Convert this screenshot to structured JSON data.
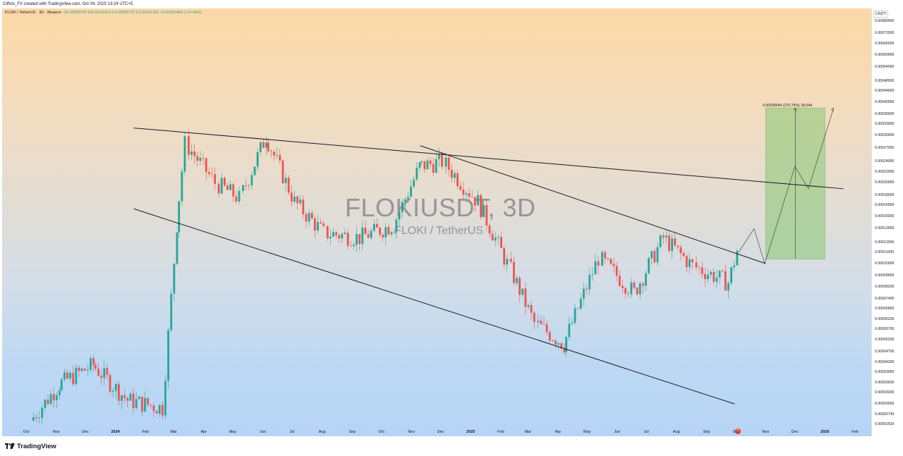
{
  "header": {
    "caption": "Clifton_FX created with TradingView.com, Oct 04, 2025 13:24 UTC+5"
  },
  "legend": {
    "title": "FLOKI / TetherUS · 3D · Binance",
    "values": "O0.00009760 H0.00011614 L0.00009729 C0.00011169 +0.00001409 (+14.44%)"
  },
  "watermark": {
    "symbol": "FLOKIUSDT, 3D",
    "name": "FLOKI / TetherUS"
  },
  "price_axis": {
    "currency": "USDT",
    "ticks": [
      "0.00080000",
      "0.00072000",
      "0.00066000",
      "0.00060000",
      "0.00054000",
      "0.00048000",
      "0.00044000",
      "0.00040000",
      "0.00036000",
      "0.00033000",
      "0.00030000",
      "0.00027000",
      "0.00024000",
      "0.00022000",
      "0.00020000",
      "0.00018000",
      "0.00016500",
      "0.00015000",
      "0.00013500",
      "0.00012000",
      "0.00011000",
      "0.00010000",
      "0.00009000",
      "0.00008200",
      "0.00007400",
      "0.00006800",
      "0.00006200",
      "0.00005700",
      "0.00005200",
      "0.00004700",
      "0.00004300",
      "0.00003950",
      "0.00003600",
      "0.00003300",
      "0.00003000",
      "0.00002740",
      "0.00002520"
    ]
  },
  "time_axis": {
    "labels": [
      {
        "text": "Oct",
        "bold": false
      },
      {
        "text": "Nov",
        "bold": false
      },
      {
        "text": "Dec",
        "bold": false
      },
      {
        "text": "2024",
        "bold": true
      },
      {
        "text": "Feb",
        "bold": false
      },
      {
        "text": "Mar",
        "bold": false
      },
      {
        "text": "Apr",
        "bold": false
      },
      {
        "text": "May",
        "bold": false
      },
      {
        "text": "Jun",
        "bold": false
      },
      {
        "text": "Jul",
        "bold": false
      },
      {
        "text": "Aug",
        "bold": false
      },
      {
        "text": "Sep",
        "bold": false
      },
      {
        "text": "Oct",
        "bold": false
      },
      {
        "text": "Nov",
        "bold": false
      },
      {
        "text": "Dec",
        "bold": false
      },
      {
        "text": "2025",
        "bold": true
      },
      {
        "text": "Feb",
        "bold": false
      },
      {
        "text": "Mar",
        "bold": false
      },
      {
        "text": "Apr",
        "bold": false
      },
      {
        "text": "May",
        "bold": false
      },
      {
        "text": "Jun",
        "bold": false
      },
      {
        "text": "Jul",
        "bold": false
      },
      {
        "text": "Aug",
        "bold": false
      },
      {
        "text": "Sep",
        "bold": false
      },
      {
        "text": "Oct",
        "bold": false
      },
      {
        "text": "Nov",
        "bold": false
      },
      {
        "text": "Dec",
        "bold": false
      },
      {
        "text": "2026",
        "bold": true
      },
      {
        "text": "Feb",
        "bold": false
      }
    ]
  },
  "measure": {
    "label": "0.00028044 (270.79%) 28,044"
  },
  "footer": {
    "brand": "TradingView"
  },
  "colors": {
    "up": "#26a69a",
    "down": "#ef5350",
    "target_zone": "#8fc97a",
    "lines": "#131722"
  },
  "chart_data": {
    "type": "candlestick",
    "symbol": "FLOKIUSDT",
    "timeframe": "3D",
    "exchange": "Binance",
    "scale": "log",
    "x_range": [
      "2023-10-01",
      "2026-02-01"
    ],
    "y_range": [
      2.52e-05,
      0.0008
    ],
    "closes_approx": [
      {
        "date": "2023-10-07",
        "close": 2.6e-05
      },
      {
        "date": "2023-11-05",
        "close": 3.55e-05
      },
      {
        "date": "2023-12-10",
        "close": 4.2e-05
      },
      {
        "date": "2024-01-15",
        "close": 3.1e-05
      },
      {
        "date": "2024-02-20",
        "close": 2.9e-05
      },
      {
        "date": "2024-03-05",
        "close": 0.00014
      },
      {
        "date": "2024-03-15",
        "close": 0.00028
      },
      {
        "date": "2024-04-15",
        "close": 0.0002
      },
      {
        "date": "2024-05-10",
        "close": 0.000175
      },
      {
        "date": "2024-06-05",
        "close": 0.0003
      },
      {
        "date": "2024-07-05",
        "close": 0.00017
      },
      {
        "date": "2024-08-05",
        "close": 0.00013
      },
      {
        "date": "2024-09-10",
        "close": 0.000125
      },
      {
        "date": "2024-10-15",
        "close": 0.00014
      },
      {
        "date": "2024-11-10",
        "close": 0.00023
      },
      {
        "date": "2024-12-05",
        "close": 0.00024
      },
      {
        "date": "2025-01-10",
        "close": 0.00017
      },
      {
        "date": "2025-02-10",
        "close": 0.0001
      },
      {
        "date": "2025-03-10",
        "close": 6e-05
      },
      {
        "date": "2025-04-08",
        "close": 5e-05
      },
      {
        "date": "2025-05-15",
        "close": 0.000105
      },
      {
        "date": "2025-06-20",
        "close": 7.8e-05
      },
      {
        "date": "2025-07-20",
        "close": 0.000125
      },
      {
        "date": "2025-08-20",
        "close": 9.8e-05
      },
      {
        "date": "2025-09-25",
        "close": 8.5e-05
      },
      {
        "date": "2025-10-04",
        "close": 0.00011169
      }
    ],
    "trendlines": [
      {
        "name": "upper-resistance",
        "from": {
          "date": "2024-01-20",
          "price": 0.00032
        },
        "to": {
          "date": "2026-01-20",
          "price": 0.00019
        }
      },
      {
        "name": "channel-support",
        "from": {
          "date": "2024-01-20",
          "price": 0.00016
        },
        "to": {
          "date": "2025-09-30",
          "price": 3e-05
        }
      },
      {
        "name": "descending-resistance",
        "from": {
          "date": "2024-11-10",
          "price": 0.000275
        },
        "to": {
          "date": "2025-11-01",
          "price": 0.0001
        }
      }
    ],
    "target_zone": {
      "from_date": "2025-11-01",
      "to_date": "2026-01-01",
      "low": 0.000104,
      "high": 0.00038
    }
  }
}
